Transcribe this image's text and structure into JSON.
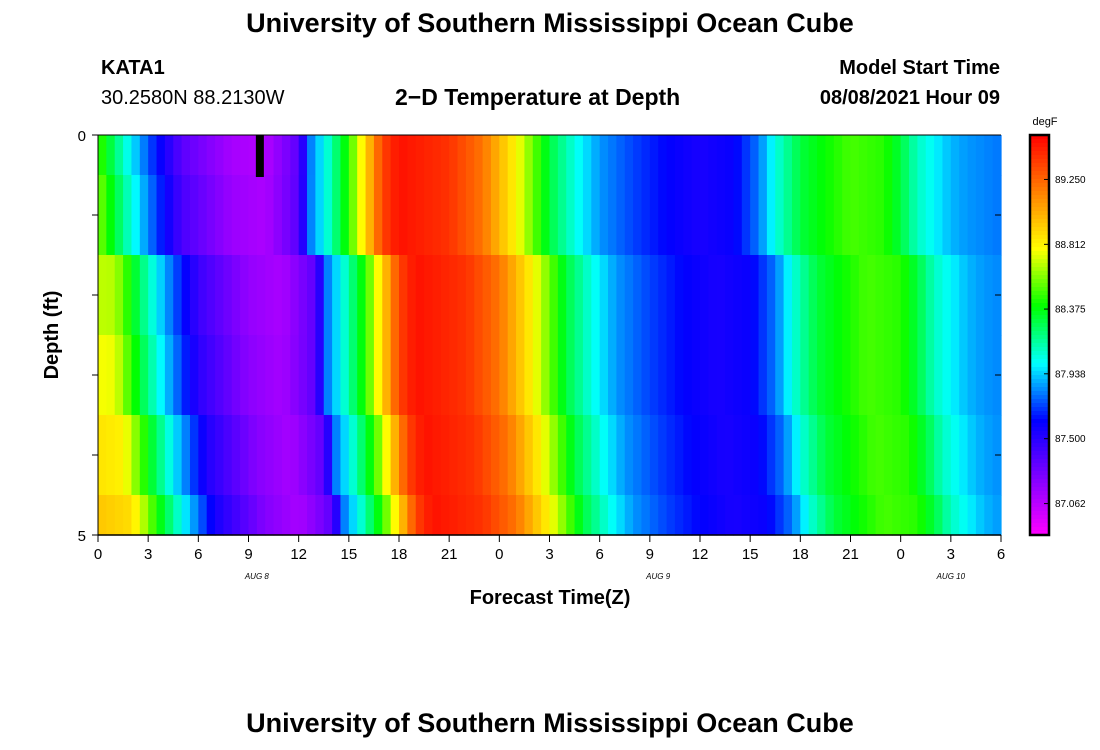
{
  "header": {
    "title": "University of Southern Mississippi Ocean Cube",
    "station_id": "KATA1",
    "station_coords": "30.2580N  88.2130W",
    "plot_title": "2−D Temperature at Depth",
    "model_label": "Model Start Time",
    "model_time": "08/08/2021 Hour 09"
  },
  "footer": {
    "title": "University of Southern Mississippi Ocean Cube"
  },
  "chart_data": {
    "type": "heatmap",
    "title": "2−D Temperature at Depth",
    "xlabel": "Forecast Time(Z)",
    "ylabel": "Depth (ft)",
    "x_tick_labels": [
      "0",
      "3",
      "6",
      "9",
      "12",
      "15",
      "18",
      "21",
      "0",
      "3",
      "6",
      "9",
      "12",
      "15",
      "18",
      "21",
      "0",
      "3",
      "6"
    ],
    "date_labels": [
      "AUG  8",
      "AUG  9",
      "AUG  10"
    ],
    "y_tick_labels": [
      "0",
      "5"
    ],
    "ylim": [
      0,
      5
    ],
    "hours": 54,
    "depth_rows": [
      0.5,
      1.5,
      2.5,
      3.5,
      4.5
    ],
    "row_time_offsets_hours": [
      0,
      0,
      1,
      1,
      1.5,
      2
    ],
    "colorbar": {
      "unit": "degF",
      "ticks": [
        "89.250",
        "88.812",
        "88.375",
        "87.938",
        "87.500",
        "87.062"
      ],
      "tick_values": [
        89.25,
        88.812,
        88.375,
        87.938,
        87.5,
        87.062
      ],
      "vmin": 86.85,
      "vmax": 89.55,
      "colors": [
        "#ff00ff",
        "#8000ff",
        "#0000ff",
        "#00ffff",
        "#00ff00",
        "#ffff00",
        "#ff8000",
        "#ff0000"
      ]
    },
    "temperature_profile_degF": {
      "hours": [
        0,
        1.5,
        3,
        5,
        8,
        10,
        12,
        12.8,
        13.5,
        15,
        16,
        17,
        18,
        21,
        23,
        25,
        27,
        28.5,
        30,
        32,
        34,
        36,
        38,
        39.5,
        40.5,
        42,
        45,
        47,
        48,
        49,
        50,
        51,
        52,
        54
      ],
      "values": [
        88.5,
        88.1,
        87.75,
        87.35,
        87.12,
        87.08,
        87.35,
        87.85,
        88.0,
        88.45,
        88.9,
        89.35,
        89.5,
        89.4,
        89.2,
        88.8,
        88.3,
        88.05,
        87.85,
        87.72,
        87.62,
        87.55,
        87.6,
        87.8,
        88.05,
        88.3,
        88.5,
        88.45,
        88.3,
        88.1,
        88.0,
        87.9,
        87.85,
        87.8
      ]
    },
    "missing_marker": {
      "hour": 9.5,
      "depth_row": 0
    }
  }
}
